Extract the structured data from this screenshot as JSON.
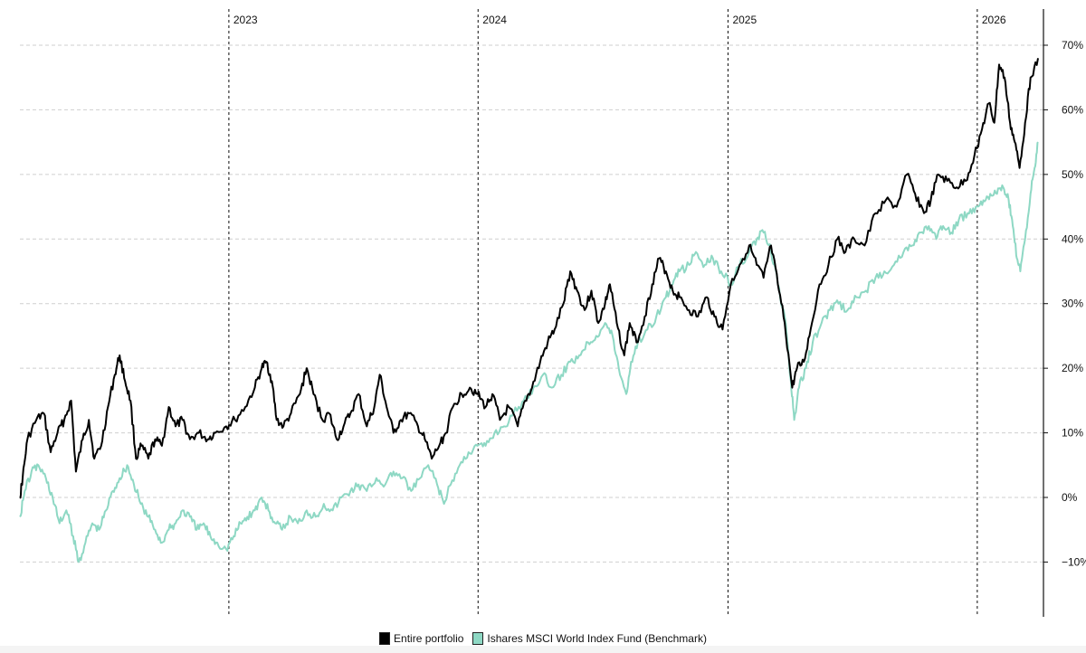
{
  "chart_data": {
    "type": "line",
    "title": "",
    "xlabel": "",
    "ylabel": "",
    "x_start": "2022-03-01",
    "x_end": "2026-03-31",
    "year_markers": [
      {
        "label": "2023",
        "date": "2023-01-01"
      },
      {
        "label": "2024",
        "date": "2024-01-01"
      },
      {
        "label": "2025",
        "date": "2025-01-01"
      },
      {
        "label": "2026",
        "date": "2026-01-01"
      }
    ],
    "ylim": [
      -15,
      75
    ],
    "yticks": [
      -10,
      0,
      10,
      20,
      30,
      40,
      50,
      60,
      70
    ],
    "ytick_labels": [
      "−10%",
      "0%",
      "10%",
      "20%",
      "30%",
      "40%",
      "50%",
      "60%",
      "70%"
    ],
    "grid": true,
    "legend_position": "bottom",
    "series": [
      {
        "name": "Entire portfolio",
        "color": "#000000",
        "points": [
          [
            "2022-03-01",
            0
          ],
          [
            "2022-03-05",
            3
          ],
          [
            "2022-03-12",
            9
          ],
          [
            "2022-03-25",
            12
          ],
          [
            "2022-04-05",
            13
          ],
          [
            "2022-04-15",
            7
          ],
          [
            "2022-04-25",
            10
          ],
          [
            "2022-05-05",
            12
          ],
          [
            "2022-05-15",
            15
          ],
          [
            "2022-05-22",
            4
          ],
          [
            "2022-06-01",
            9
          ],
          [
            "2022-06-10",
            12
          ],
          [
            "2022-06-18",
            6
          ],
          [
            "2022-06-28",
            8
          ],
          [
            "2022-07-08",
            14
          ],
          [
            "2022-07-18",
            19
          ],
          [
            "2022-07-25",
            22
          ],
          [
            "2022-08-02",
            18
          ],
          [
            "2022-08-10",
            15
          ],
          [
            "2022-08-18",
            6
          ],
          [
            "2022-08-26",
            8
          ],
          [
            "2022-09-05",
            6
          ],
          [
            "2022-09-15",
            9
          ],
          [
            "2022-09-25",
            8
          ],
          [
            "2022-10-05",
            14
          ],
          [
            "2022-10-15",
            11
          ],
          [
            "2022-10-25",
            12
          ],
          [
            "2022-11-05",
            9
          ],
          [
            "2022-11-18",
            10
          ],
          [
            "2022-12-01",
            9
          ],
          [
            "2022-12-12",
            10
          ],
          [
            "2022-12-28",
            11
          ],
          [
            "2023-01-10",
            12
          ],
          [
            "2023-01-25",
            14
          ],
          [
            "2023-02-08",
            17
          ],
          [
            "2023-02-18",
            20
          ],
          [
            "2023-02-25",
            21
          ],
          [
            "2023-03-05",
            18
          ],
          [
            "2023-03-12",
            12
          ],
          [
            "2023-03-22",
            11
          ],
          [
            "2023-04-02",
            13
          ],
          [
            "2023-04-15",
            16
          ],
          [
            "2023-04-25",
            20
          ],
          [
            "2023-05-05",
            16
          ],
          [
            "2023-05-18",
            12
          ],
          [
            "2023-05-28",
            13
          ],
          [
            "2023-06-08",
            9
          ],
          [
            "2023-06-18",
            11
          ],
          [
            "2023-06-28",
            13
          ],
          [
            "2023-07-10",
            16
          ],
          [
            "2023-07-22",
            11
          ],
          [
            "2023-08-02",
            14
          ],
          [
            "2023-08-10",
            19
          ],
          [
            "2023-08-20",
            14
          ],
          [
            "2023-08-30",
            10
          ],
          [
            "2023-09-10",
            12
          ],
          [
            "2023-09-22",
            13
          ],
          [
            "2023-10-05",
            11
          ],
          [
            "2023-10-15",
            9
          ],
          [
            "2023-10-25",
            6
          ],
          [
            "2023-11-05",
            8
          ],
          [
            "2023-11-15",
            10
          ],
          [
            "2023-11-25",
            14
          ],
          [
            "2023-12-08",
            16
          ],
          [
            "2023-12-20",
            17
          ],
          [
            "2023-12-31",
            16
          ],
          [
            "2024-01-12",
            14
          ],
          [
            "2024-01-22",
            16
          ],
          [
            "2024-02-02",
            12
          ],
          [
            "2024-02-15",
            14
          ],
          [
            "2024-02-28",
            11
          ],
          [
            "2024-03-10",
            15
          ],
          [
            "2024-03-20",
            17
          ],
          [
            "2024-04-01",
            21
          ],
          [
            "2024-04-12",
            24
          ],
          [
            "2024-04-22",
            26
          ],
          [
            "2024-05-05",
            30
          ],
          [
            "2024-05-15",
            35
          ],
          [
            "2024-05-25",
            32
          ],
          [
            "2024-06-05",
            29
          ],
          [
            "2024-06-15",
            32
          ],
          [
            "2024-06-25",
            27
          ],
          [
            "2024-07-05",
            30
          ],
          [
            "2024-07-12",
            33
          ],
          [
            "2024-07-22",
            27
          ],
          [
            "2024-08-02",
            22
          ],
          [
            "2024-08-10",
            27
          ],
          [
            "2024-08-20",
            24
          ],
          [
            "2024-09-01",
            28
          ],
          [
            "2024-09-12",
            33
          ],
          [
            "2024-09-22",
            37
          ],
          [
            "2024-10-02",
            35
          ],
          [
            "2024-10-12",
            32
          ],
          [
            "2024-10-22",
            31
          ],
          [
            "2024-11-05",
            29
          ],
          [
            "2024-11-18",
            28
          ],
          [
            "2024-12-01",
            31
          ],
          [
            "2024-12-12",
            28
          ],
          [
            "2024-12-24",
            26
          ],
          [
            "2025-01-05",
            33
          ],
          [
            "2025-01-18",
            36
          ],
          [
            "2025-02-01",
            39
          ],
          [
            "2025-02-12",
            36
          ],
          [
            "2025-02-22",
            34
          ],
          [
            "2025-03-05",
            39
          ],
          [
            "2025-03-15",
            33
          ],
          [
            "2025-03-25",
            27
          ],
          [
            "2025-04-05",
            17
          ],
          [
            "2025-04-12",
            20
          ],
          [
            "2025-04-22",
            21
          ],
          [
            "2025-05-02",
            26
          ],
          [
            "2025-05-15",
            33
          ],
          [
            "2025-05-28",
            36
          ],
          [
            "2025-06-10",
            40
          ],
          [
            "2025-06-22",
            38
          ],
          [
            "2025-07-05",
            40
          ],
          [
            "2025-07-20",
            39
          ],
          [
            "2025-08-05",
            44
          ],
          [
            "2025-08-20",
            46
          ],
          [
            "2025-09-05",
            45
          ],
          [
            "2025-09-20",
            50
          ],
          [
            "2025-10-02",
            47
          ],
          [
            "2025-10-15",
            44
          ],
          [
            "2025-10-25",
            46
          ],
          [
            "2025-11-05",
            50
          ],
          [
            "2025-11-18",
            49
          ],
          [
            "2025-12-02",
            48
          ],
          [
            "2025-12-15",
            49
          ],
          [
            "2025-12-28",
            53
          ],
          [
            "2026-01-08",
            57
          ],
          [
            "2026-01-18",
            61
          ],
          [
            "2026-01-26",
            58
          ],
          [
            "2026-02-02",
            67
          ],
          [
            "2026-02-10",
            65
          ],
          [
            "2026-02-18",
            58
          ],
          [
            "2026-02-25",
            55
          ],
          [
            "2026-03-04",
            51
          ],
          [
            "2026-03-12",
            58
          ],
          [
            "2026-03-20",
            65
          ],
          [
            "2026-03-31",
            68
          ]
        ]
      },
      {
        "name": "Ishares MSCI World Index Fund (Benchmark)",
        "color": "#8ed8c4",
        "points": [
          [
            "2022-03-01",
            -3
          ],
          [
            "2022-03-08",
            1
          ],
          [
            "2022-03-18",
            4
          ],
          [
            "2022-03-28",
            5
          ],
          [
            "2022-04-08",
            3
          ],
          [
            "2022-04-18",
            0
          ],
          [
            "2022-04-28",
            -4
          ],
          [
            "2022-05-08",
            -2
          ],
          [
            "2022-05-18",
            -6
          ],
          [
            "2022-05-26",
            -10
          ],
          [
            "2022-06-05",
            -7
          ],
          [
            "2022-06-15",
            -4
          ],
          [
            "2022-06-25",
            -5
          ],
          [
            "2022-07-05",
            -2
          ],
          [
            "2022-07-15",
            1
          ],
          [
            "2022-07-25",
            3
          ],
          [
            "2022-08-05",
            5
          ],
          [
            "2022-08-15",
            2
          ],
          [
            "2022-08-25",
            -1
          ],
          [
            "2022-09-05",
            -3
          ],
          [
            "2022-09-15",
            -5
          ],
          [
            "2022-09-25",
            -7
          ],
          [
            "2022-10-05",
            -5
          ],
          [
            "2022-10-15",
            -4
          ],
          [
            "2022-10-25",
            -2
          ],
          [
            "2022-11-05",
            -3
          ],
          [
            "2022-11-15",
            -5
          ],
          [
            "2022-11-25",
            -4
          ],
          [
            "2022-12-05",
            -6
          ],
          [
            "2022-12-15",
            -7
          ],
          [
            "2022-12-28",
            -8
          ],
          [
            "2023-01-08",
            -6
          ],
          [
            "2023-01-18",
            -4
          ],
          [
            "2023-01-28",
            -3
          ],
          [
            "2023-02-08",
            -2
          ],
          [
            "2023-02-18",
            0
          ],
          [
            "2023-02-28",
            -2
          ],
          [
            "2023-03-10",
            -4
          ],
          [
            "2023-03-20",
            -5
          ],
          [
            "2023-04-01",
            -3
          ],
          [
            "2023-04-12",
            -4
          ],
          [
            "2023-04-25",
            -2
          ],
          [
            "2023-05-08",
            -3
          ],
          [
            "2023-05-20",
            -1
          ],
          [
            "2023-06-02",
            -2
          ],
          [
            "2023-06-15",
            0
          ],
          [
            "2023-06-28",
            1
          ],
          [
            "2023-07-10",
            2
          ],
          [
            "2023-07-22",
            1
          ],
          [
            "2023-08-05",
            3
          ],
          [
            "2023-08-18",
            2
          ],
          [
            "2023-08-30",
            4
          ],
          [
            "2023-09-12",
            3
          ],
          [
            "2023-09-25",
            1
          ],
          [
            "2023-10-08",
            3
          ],
          [
            "2023-10-20",
            5
          ],
          [
            "2023-11-02",
            2
          ],
          [
            "2023-11-12",
            -1
          ],
          [
            "2023-11-22",
            2
          ],
          [
            "2023-12-05",
            5
          ],
          [
            "2023-12-18",
            7
          ],
          [
            "2023-12-31",
            8
          ],
          [
            "2024-01-12",
            8
          ],
          [
            "2024-01-25",
            10
          ],
          [
            "2024-02-08",
            11
          ],
          [
            "2024-02-22",
            13
          ],
          [
            "2024-03-08",
            15
          ],
          [
            "2024-03-22",
            17
          ],
          [
            "2024-04-05",
            19
          ],
          [
            "2024-04-18",
            17
          ],
          [
            "2024-05-02",
            19
          ],
          [
            "2024-05-15",
            21
          ],
          [
            "2024-05-28",
            22
          ],
          [
            "2024-06-10",
            24
          ],
          [
            "2024-06-22",
            25
          ],
          [
            "2024-07-05",
            27
          ],
          [
            "2024-07-16",
            25
          ],
          [
            "2024-07-25",
            20
          ],
          [
            "2024-08-05",
            16
          ],
          [
            "2024-08-12",
            21
          ],
          [
            "2024-08-22",
            24
          ],
          [
            "2024-09-05",
            26
          ],
          [
            "2024-09-18",
            28
          ],
          [
            "2024-10-02",
            31
          ],
          [
            "2024-10-12",
            33
          ],
          [
            "2024-10-22",
            35
          ],
          [
            "2024-11-05",
            36
          ],
          [
            "2024-11-15",
            38
          ],
          [
            "2024-11-28",
            36
          ],
          [
            "2024-12-10",
            37
          ],
          [
            "2024-12-22",
            35
          ],
          [
            "2025-01-05",
            33
          ],
          [
            "2025-01-18",
            36
          ],
          [
            "2025-02-01",
            38
          ],
          [
            "2025-02-12",
            40
          ],
          [
            "2025-02-22",
            41
          ],
          [
            "2025-03-05",
            38
          ],
          [
            "2025-03-15",
            33
          ],
          [
            "2025-03-25",
            28
          ],
          [
            "2025-04-03",
            18
          ],
          [
            "2025-04-08",
            12
          ],
          [
            "2025-04-15",
            17
          ],
          [
            "2025-04-25",
            20
          ],
          [
            "2025-05-05",
            24
          ],
          [
            "2025-05-18",
            27
          ],
          [
            "2025-05-30",
            29
          ],
          [
            "2025-06-12",
            30
          ],
          [
            "2025-06-25",
            29
          ],
          [
            "2025-07-08",
            31
          ],
          [
            "2025-07-22",
            32
          ],
          [
            "2025-08-05",
            34
          ],
          [
            "2025-08-18",
            35
          ],
          [
            "2025-09-01",
            36
          ],
          [
            "2025-09-15",
            38
          ],
          [
            "2025-09-28",
            39
          ],
          [
            "2025-10-10",
            41
          ],
          [
            "2025-10-22",
            42
          ],
          [
            "2025-11-02",
            40
          ],
          [
            "2025-11-12",
            42
          ],
          [
            "2025-11-24",
            41
          ],
          [
            "2025-12-05",
            43
          ],
          [
            "2025-12-18",
            44
          ],
          [
            "2025-12-30",
            45
          ],
          [
            "2026-01-10",
            46
          ],
          [
            "2026-01-20",
            47
          ],
          [
            "2026-01-30",
            47
          ],
          [
            "2026-02-08",
            48
          ],
          [
            "2026-02-16",
            46
          ],
          [
            "2026-02-22",
            42
          ],
          [
            "2026-02-28",
            37
          ],
          [
            "2026-03-05",
            35
          ],
          [
            "2026-03-12",
            40
          ],
          [
            "2026-03-20",
            47
          ],
          [
            "2026-03-26",
            51
          ],
          [
            "2026-03-31",
            55
          ]
        ]
      }
    ]
  },
  "legend": {
    "items": [
      {
        "label": "Entire portfolio",
        "color": "#000000"
      },
      {
        "label": "Ishares MSCI World Index Fund (Benchmark)",
        "color": "#8ed8c4"
      }
    ]
  }
}
